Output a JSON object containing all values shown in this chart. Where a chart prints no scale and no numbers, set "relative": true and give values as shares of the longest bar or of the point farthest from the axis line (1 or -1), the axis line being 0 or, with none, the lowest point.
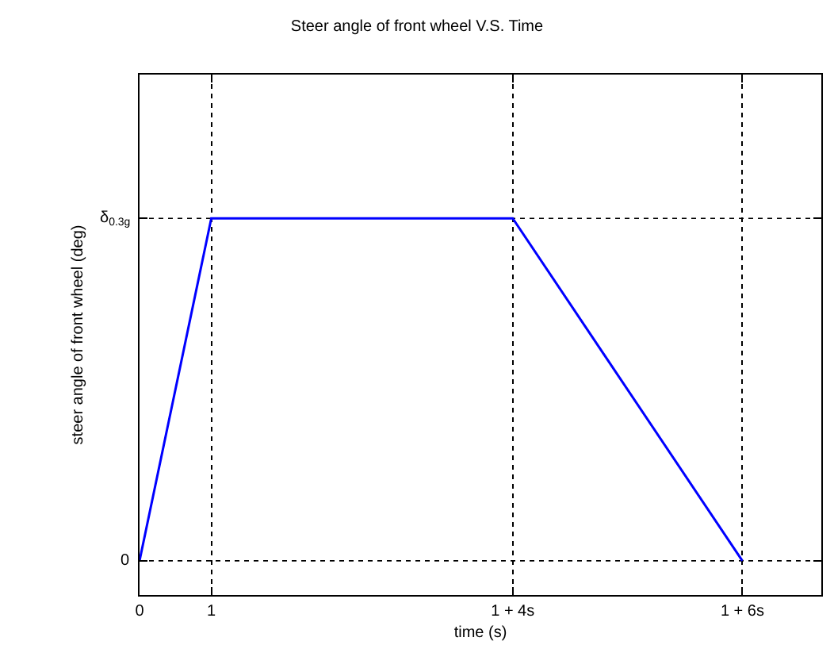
{
  "chart_data": {
    "type": "line",
    "title": "Steer angle of front wheel V.S. Time",
    "xlabel": "time (s)",
    "ylabel": "steer angle of front wheel (deg)",
    "x": [
      0,
      1,
      5.2,
      8.4
    ],
    "series": [
      {
        "color": "#0000ff",
        "values": [
          0,
          1,
          1,
          0
        ]
      }
    ],
    "relative": true,
    "ref_lines": [
      {
        "axis": "y",
        "value": 0,
        "label": "0",
        "color": "#000000",
        "line_style": "dotted"
      },
      {
        "axis": "y",
        "value": 1,
        "label": "δ$_{0.3g}$",
        "color": "#000000",
        "line_style": "dotted"
      }
    ],
    "xlim": [
      0,
      9.5
    ],
    "xticks": [
      0,
      1,
      {
        "value": 5.2,
        "label": "1 + 4s"
      },
      {
        "value": 8.4,
        "label": "1 + 6s"
      }
    ],
    "grid": "x",
    "line_style": "solid",
    "marker": "none"
  }
}
